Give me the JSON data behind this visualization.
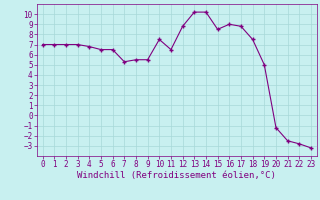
{
  "x": [
    0,
    1,
    2,
    3,
    4,
    5,
    6,
    7,
    8,
    9,
    10,
    11,
    12,
    13,
    14,
    15,
    16,
    17,
    18,
    19,
    20,
    21,
    22,
    23
  ],
  "y": [
    7.0,
    7.0,
    7.0,
    7.0,
    6.8,
    6.5,
    6.5,
    5.3,
    5.5,
    5.5,
    7.5,
    6.5,
    8.8,
    10.2,
    10.2,
    8.5,
    9.0,
    8.8,
    7.5,
    5.0,
    -1.2,
    -2.5,
    -2.8,
    -3.2
  ],
  "line_color": "#800080",
  "marker": "+",
  "marker_color": "#800080",
  "bg_color": "#c8f0f0",
  "grid_color": "#a8d8d8",
  "xlabel": "Windchill (Refroidissement éolien,°C)",
  "ylim": [
    -4,
    11
  ],
  "xlim": [
    -0.5,
    23.5
  ],
  "yticks": [
    10,
    9,
    8,
    7,
    6,
    5,
    4,
    3,
    2,
    1,
    0,
    -1,
    -2,
    -3
  ],
  "xticks": [
    0,
    1,
    2,
    3,
    4,
    5,
    6,
    7,
    8,
    9,
    10,
    11,
    12,
    13,
    14,
    15,
    16,
    17,
    18,
    19,
    20,
    21,
    22,
    23
  ],
  "line_color_hex": "#800080",
  "tick_color": "#800080",
  "xlabel_color": "#800080",
  "font_family": "monospace",
  "tick_fontsize": 5.5,
  "xlabel_fontsize": 6.5,
  "linewidth": 0.8,
  "markersize": 3.5
}
